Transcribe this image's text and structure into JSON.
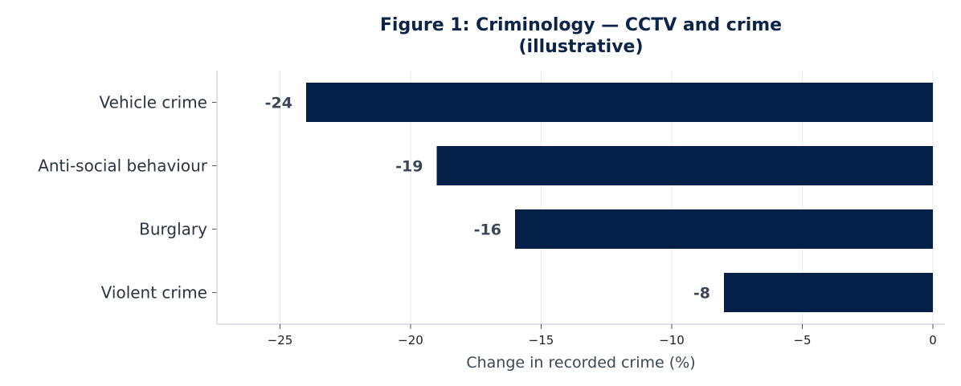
{
  "chart_data": {
    "type": "bar",
    "orientation": "horizontal",
    "title_lines": [
      "Figure 1: Criminology — CCTV and crime",
      "(illustrative)"
    ],
    "xlabel": "Change in recorded crime (%)",
    "ylabel": "",
    "categories": [
      "Vehicle crime",
      "Anti-social behaviour",
      "Burglary",
      "Violent crime"
    ],
    "values": [
      -24,
      -19,
      -16,
      -8
    ],
    "data_labels": [
      "-24",
      "-19",
      "-16",
      "-8"
    ],
    "xlim": [
      -27.3,
      0.5
    ],
    "xticks": [
      -25,
      -20,
      -15,
      -10,
      -5,
      0
    ],
    "xtick_labels": [
      "−25",
      "−20",
      "−15",
      "−10",
      "−5",
      "0"
    ],
    "grid": "vertical",
    "bar_color": "#042048"
  }
}
